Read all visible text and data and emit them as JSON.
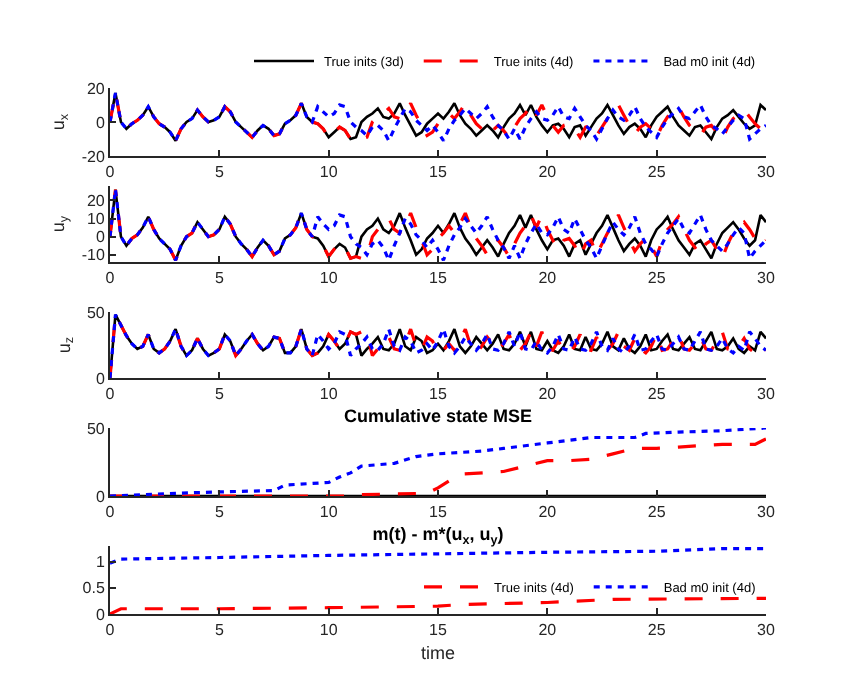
{
  "chart_data": [
    {
      "type": "line",
      "ylabel": "u$_{x}$",
      "xlim": [
        0,
        30
      ],
      "xticks": [
        0,
        5,
        10,
        15,
        20,
        25,
        30
      ],
      "ylim": [
        -20,
        20
      ],
      "yticks": [
        -20,
        0,
        20
      ],
      "legend": "top right",
      "grid": false,
      "marker": "none",
      "x": [
        0,
        0.25,
        0.5,
        0.75,
        1,
        1.25,
        1.5,
        1.75,
        2,
        2.25,
        2.5,
        2.75,
        3,
        3.25,
        3.5,
        3.75,
        4,
        4.25,
        4.5,
        4.75,
        5,
        5.25,
        5.5,
        5.75,
        6,
        6.25,
        6.5,
        6.75,
        7,
        7.25,
        7.5,
        7.75,
        8,
        8.25,
        8.5,
        8.75,
        9,
        9.25,
        9.5,
        9.75,
        10,
        10.25,
        10.5,
        10.75,
        11,
        11.25,
        11.5,
        11.75,
        12,
        12.25,
        12.5,
        12.75,
        13,
        13.25,
        13.5,
        13.75,
        14,
        14.25,
        14.5,
        14.75,
        15,
        15.25,
        15.5,
        15.75,
        16,
        16.25,
        16.5,
        16.75,
        17,
        17.25,
        17.5,
        17.75,
        18,
        18.25,
        18.5,
        18.75,
        19,
        19.25,
        19.5,
        19.75,
        20,
        20.25,
        20.5,
        20.75,
        21,
        21.25,
        21.5,
        21.75,
        22,
        22.25,
        22.5,
        22.75,
        23,
        23.25,
        23.5,
        23.75,
        24,
        24.25,
        24.5,
        24.75,
        25,
        25.25,
        25.5,
        25.75,
        26,
        26.25,
        26.5,
        26.75,
        27,
        27.25,
        27.5,
        27.75,
        28,
        28.25,
        28.5,
        28.75,
        29,
        29.25,
        29.5,
        29.75,
        30
      ],
      "series": [
        {
          "name": "True inits (3d)",
          "color": "#000000",
          "line_style": "solid",
          "values": [
            0,
            17,
            0,
            -4,
            -1,
            1,
            4,
            9,
            3,
            -1,
            -3,
            -6,
            -11,
            -4,
            0,
            2,
            7,
            3,
            0,
            1,
            3,
            9,
            6,
            0,
            -3,
            -6,
            -9,
            -5,
            -2,
            -4,
            -8,
            -7,
            -1,
            1,
            4,
            11,
            3,
            0,
            -1,
            -4,
            -9,
            -6,
            -3,
            -5,
            -10,
            -9,
            0,
            3,
            5,
            8,
            3,
            2,
            5,
            11,
            4,
            -2,
            -8,
            -6,
            -1,
            2,
            5,
            2,
            6,
            11,
            4,
            -1,
            -4,
            -8,
            -5,
            -2,
            -5,
            -9,
            -3,
            2,
            5,
            10,
            4,
            10,
            3,
            -2,
            -6,
            -2,
            -1,
            -4,
            -9,
            -3,
            -2,
            -8,
            -3,
            2,
            5,
            10,
            4,
            -2,
            -7,
            -3,
            -1,
            -4,
            -9,
            -2,
            3,
            6,
            9,
            3,
            -2,
            -5,
            -8,
            -3,
            -2,
            -6,
            -10,
            -3,
            2,
            4,
            7,
            3,
            -1,
            -4,
            -2,
            10,
            7
          ]
        },
        {
          "name": "True inits (4d)",
          "color": "#ff0000",
          "line_style": "dashed",
          "values": [
            0,
            17,
            0,
            -4,
            -1,
            1,
            4,
            9,
            3,
            -1,
            -3,
            -6,
            -11,
            -4,
            0,
            2,
            7,
            3,
            0,
            1,
            3,
            9,
            6,
            0,
            -3,
            -6,
            -9,
            -5,
            -2,
            -4,
            -8,
            -7,
            -1,
            1,
            4,
            11,
            3,
            0,
            -1,
            -4,
            -9,
            -6,
            -3,
            -5,
            -10,
            -9,
            -10,
            -9,
            0,
            3,
            5,
            8,
            3,
            2,
            5,
            11,
            4,
            -2,
            -8,
            -6,
            -1,
            2,
            5,
            2,
            6,
            11,
            4,
            -1,
            -4,
            -8,
            -5,
            -2,
            -5,
            -9,
            -3,
            2,
            5,
            10,
            4,
            10,
            3,
            -2,
            -6,
            -2,
            -1,
            -4,
            -9,
            -3,
            -2,
            -8,
            -3,
            2,
            5,
            10,
            4,
            -2,
            -7,
            -3,
            -1,
            -4,
            -9,
            -2,
            3,
            6,
            9,
            3,
            -2,
            -5,
            -8,
            -3,
            -2,
            -6,
            -10,
            -3,
            2,
            4,
            7,
            3,
            -1,
            -4,
            -2
          ]
        },
        {
          "name": "Bad m0 init (4d)",
          "color": "#0000ff",
          "line_style": "dotted",
          "values": [
            0,
            17,
            0,
            -4,
            -1,
            1,
            4,
            9,
            3,
            -1,
            -3,
            -6,
            -11,
            -4,
            0,
            2,
            7,
            3,
            0,
            1,
            3,
            9,
            6,
            0,
            -3,
            -6,
            -9,
            -5,
            -2,
            -4,
            -8,
            -7,
            -1,
            1,
            4,
            11,
            3,
            0,
            9,
            6,
            3,
            5,
            10,
            9,
            0,
            -3,
            -5,
            -8,
            -3,
            -2,
            -5,
            -11,
            -4,
            2,
            8,
            6,
            1,
            -2,
            -5,
            -2,
            -6,
            -11,
            -4,
            1,
            4,
            8,
            5,
            2,
            5,
            9,
            3,
            -2,
            -5,
            -10,
            -4,
            -10,
            -3,
            2,
            6,
            2,
            1,
            4,
            9,
            3,
            2,
            8,
            3,
            -2,
            -5,
            -10,
            -4,
            2,
            7,
            3,
            1,
            4,
            9,
            2,
            -3,
            -6,
            -9,
            -3,
            2,
            5,
            8,
            3,
            2,
            6,
            10,
            3,
            -2,
            -4,
            -7,
            -3,
            1,
            4,
            2,
            -10,
            -7,
            -4,
            -2
          ]
        }
      ]
    },
    {
      "type": "line",
      "ylabel": "u$_{y}$",
      "xlim": [
        0,
        30
      ],
      "xticks": [
        0,
        5,
        10,
        15,
        20,
        25,
        30
      ],
      "ylim": [
        -14,
        28
      ],
      "yticks": [
        -10,
        0,
        10,
        20
      ],
      "grid": false,
      "marker": "none",
      "x": [
        0,
        0.25,
        0.5,
        0.75,
        1,
        1.25,
        1.5,
        1.75,
        2,
        2.25,
        2.5,
        2.75,
        3,
        3.25,
        3.5,
        3.75,
        4,
        4.25,
        4.5,
        4.75,
        5,
        5.25,
        5.5,
        5.75,
        6,
        6.25,
        6.5,
        6.75,
        7,
        7.25,
        7.5,
        7.75,
        8,
        8.25,
        8.5,
        8.75,
        9,
        9.25,
        9.5,
        9.75,
        10,
        10.25,
        10.5,
        10.75,
        11,
        11.25,
        11.5,
        11.75,
        12,
        12.25,
        12.5,
        12.75,
        13,
        13.25,
        13.5,
        13.75,
        14,
        14.25,
        14.5,
        14.75,
        15,
        15.25,
        15.5,
        15.75,
        16,
        16.25,
        16.5,
        16.75,
        17,
        17.25,
        17.5,
        17.75,
        18,
        18.25,
        18.5,
        18.75,
        19,
        19.25,
        19.5,
        19.75,
        20,
        20.25,
        20.5,
        20.75,
        21,
        21.25,
        21.5,
        21.75,
        22,
        22.25,
        22.5,
        22.75,
        23,
        23.25,
        23.5,
        23.75,
        24,
        24.25,
        24.5,
        24.75,
        25,
        25.25,
        25.5,
        25.75,
        26,
        26.25,
        26.5,
        26.75,
        27,
        27.25,
        27.5,
        27.75,
        28,
        28.25,
        28.5,
        28.75,
        29,
        29.25,
        29.5,
        29.75,
        30
      ],
      "series": [
        {
          "color": "#000000",
          "line_style": "solid",
          "values": [
            0,
            26,
            0,
            -5,
            -1,
            1,
            5,
            11,
            4,
            -1,
            -4,
            -7,
            -13,
            -5,
            0,
            2,
            8,
            4,
            0,
            1,
            4,
            11,
            7,
            0,
            -4,
            -7,
            -11,
            -6,
            -2,
            -5,
            -10,
            -8,
            -1,
            1,
            5,
            13,
            4,
            0,
            -1,
            -5,
            -11,
            -7,
            -4,
            -6,
            -12,
            -11,
            0,
            4,
            6,
            10,
            4,
            2,
            6,
            13,
            5,
            -2,
            -10,
            -7,
            -1,
            2,
            6,
            2,
            7,
            13,
            5,
            -1,
            -5,
            -10,
            -6,
            -2,
            -6,
            -11,
            -4,
            2,
            6,
            12,
            5,
            12,
            4,
            -2,
            -7,
            -2,
            -1,
            -5,
            -11,
            -4,
            -2,
            -10,
            -4,
            2,
            6,
            12,
            5,
            -2,
            -8,
            -4,
            -1,
            -5,
            -11,
            -2,
            4,
            7,
            11,
            4,
            -2,
            -6,
            -10,
            -4,
            -2,
            -7,
            -12,
            -4,
            2,
            5,
            8,
            4,
            -1,
            -5,
            -2,
            12,
            8
          ]
        },
        {
          "color": "#ff0000",
          "line_style": "dashed",
          "values": [
            0,
            26,
            0,
            -5,
            -1,
            1,
            5,
            11,
            4,
            -1,
            -4,
            -7,
            -13,
            -5,
            0,
            2,
            8,
            4,
            0,
            1,
            4,
            11,
            7,
            0,
            -4,
            -7,
            -11,
            -6,
            -2,
            -5,
            -10,
            -8,
            -1,
            1,
            5,
            13,
            4,
            0,
            -1,
            -5,
            -11,
            -7,
            -4,
            -6,
            -12,
            -11,
            -12,
            -11,
            0,
            4,
            6,
            10,
            4,
            2,
            6,
            13,
            5,
            -2,
            -10,
            -7,
            -1,
            2,
            6,
            2,
            7,
            13,
            5,
            -1,
            -5,
            -10,
            -6,
            -2,
            -6,
            -11,
            -4,
            2,
            6,
            12,
            5,
            12,
            4,
            -2,
            -7,
            -2,
            -1,
            -5,
            -11,
            -4,
            -2,
            -10,
            -4,
            2,
            6,
            12,
            5,
            -2,
            -8,
            -4,
            -1,
            -5,
            -11,
            -2,
            4,
            7,
            11,
            4,
            -2,
            -6,
            -10,
            -4,
            -2,
            -7,
            -12,
            -4,
            2,
            5,
            8,
            4,
            -1,
            -5,
            -2
          ]
        },
        {
          "color": "#0000ff",
          "line_style": "dotted",
          "values": [
            0,
            26,
            0,
            -5,
            -1,
            1,
            5,
            11,
            4,
            -1,
            -4,
            -7,
            -13,
            -5,
            0,
            2,
            8,
            4,
            0,
            1,
            4,
            11,
            7,
            0,
            -4,
            -7,
            -11,
            -6,
            -2,
            -5,
            -10,
            -8,
            -1,
            1,
            5,
            13,
            4,
            0,
            11,
            7,
            4,
            6,
            12,
            11,
            0,
            -4,
            -6,
            -10,
            -4,
            -2,
            -6,
            -13,
            -5,
            2,
            10,
            7,
            1,
            -2,
            -6,
            -2,
            -7,
            -13,
            -5,
            1,
            5,
            10,
            6,
            2,
            6,
            11,
            4,
            -2,
            -6,
            -12,
            -5,
            -12,
            -4,
            2,
            7,
            2,
            1,
            5,
            11,
            4,
            2,
            10,
            4,
            -2,
            -6,
            -12,
            -5,
            2,
            8,
            4,
            1,
            5,
            11,
            2,
            -4,
            -7,
            -11,
            -4,
            2,
            6,
            10,
            4,
            2,
            7,
            12,
            4,
            -2,
            -5,
            -8,
            -4,
            1,
            5,
            2,
            -12,
            -8,
            -5,
            -2
          ]
        }
      ]
    },
    {
      "type": "line",
      "ylabel": "u$_{z}$",
      "xlim": [
        0,
        30
      ],
      "xticks": [
        0,
        5,
        10,
        15,
        20,
        25,
        30
      ],
      "ylim": [
        0,
        50
      ],
      "yticks": [
        0,
        50
      ],
      "grid": false,
      "marker": "none",
      "x": [
        0,
        0.25,
        0.5,
        0.75,
        1,
        1.25,
        1.5,
        1.75,
        2,
        2.25,
        2.5,
        2.75,
        3,
        3.25,
        3.5,
        3.75,
        4,
        4.25,
        4.5,
        4.75,
        5,
        5.25,
        5.5,
        5.75,
        6,
        6.25,
        6.5,
        6.75,
        7,
        7.25,
        7.5,
        7.75,
        8,
        8.25,
        8.5,
        8.75,
        9,
        9.25,
        9.5,
        9.75,
        10,
        10.25,
        10.5,
        10.75,
        11,
        11.25,
        11.5,
        11.75,
        12,
        12.25,
        12.5,
        12.75,
        13,
        13.25,
        13.5,
        13.75,
        14,
        14.25,
        14.5,
        14.75,
        15,
        15.25,
        15.5,
        15.75,
        16,
        16.25,
        16.5,
        16.75,
        17,
        17.25,
        17.5,
        17.75,
        18,
        18.25,
        18.5,
        18.75,
        19,
        19.25,
        19.5,
        19.75,
        20,
        20.25,
        20.5,
        20.75,
        21,
        21.25,
        21.5,
        21.75,
        22,
        22.25,
        22.5,
        22.75,
        23,
        23.25,
        23.5,
        23.75,
        24,
        24.25,
        24.5,
        24.75,
        25,
        25.25,
        25.5,
        25.75,
        26,
        26.25,
        26.5,
        26.75,
        27,
        27.25,
        27.5,
        27.75,
        28,
        28.25,
        28.5,
        28.75,
        29,
        29.25,
        29.5,
        29.75,
        30
      ],
      "series": [
        {
          "color": "#000000",
          "line_style": "solid",
          "values": [
            0,
            48,
            40,
            32,
            26,
            22,
            24,
            33,
            22,
            19,
            22,
            28,
            37,
            24,
            17,
            21,
            30,
            22,
            17,
            19,
            22,
            33,
            28,
            17,
            22,
            28,
            33,
            26,
            21,
            24,
            31,
            30,
            19,
            19,
            24,
            37,
            22,
            17,
            19,
            24,
            33,
            28,
            22,
            26,
            35,
            33,
            17,
            22,
            26,
            31,
            22,
            21,
            26,
            37,
            24,
            21,
            31,
            28,
            19,
            21,
            26,
            21,
            28,
            37,
            24,
            19,
            24,
            31,
            26,
            21,
            26,
            33,
            22,
            21,
            26,
            35,
            24,
            35,
            22,
            21,
            28,
            21,
            19,
            24,
            33,
            22,
            21,
            31,
            22,
            21,
            26,
            35,
            24,
            21,
            30,
            22,
            19,
            24,
            33,
            21,
            22,
            28,
            33,
            22,
            21,
            26,
            31,
            22,
            21,
            28,
            35,
            22,
            21,
            24,
            30,
            22,
            19,
            24,
            21,
            35,
            30
          ]
        },
        {
          "color": "#ff0000",
          "line_style": "dashed",
          "values": [
            0,
            48,
            40,
            32,
            26,
            22,
            24,
            33,
            22,
            19,
            22,
            28,
            37,
            24,
            17,
            21,
            30,
            22,
            17,
            19,
            22,
            33,
            28,
            17,
            22,
            28,
            33,
            26,
            21,
            24,
            31,
            30,
            19,
            19,
            24,
            37,
            22,
            17,
            19,
            24,
            33,
            28,
            22,
            26,
            35,
            33,
            35,
            33,
            17,
            22,
            26,
            31,
            22,
            21,
            26,
            37,
            24,
            21,
            31,
            28,
            19,
            21,
            26,
            21,
            28,
            37,
            24,
            19,
            24,
            31,
            26,
            21,
            26,
            33,
            22,
            21,
            26,
            35,
            24,
            35,
            22,
            21,
            28,
            21,
            19,
            24,
            33,
            22,
            21,
            31,
            22,
            21,
            26,
            35,
            24,
            21,
            30,
            22,
            19,
            24,
            33,
            21,
            22,
            28,
            33,
            22,
            21,
            26,
            31,
            22,
            21,
            28,
            35,
            22,
            21,
            24,
            30,
            22,
            19,
            24,
            21
          ]
        },
        {
          "color": "#0000ff",
          "line_style": "dotted",
          "values": [
            0,
            48,
            40,
            32,
            26,
            22,
            24,
            33,
            22,
            19,
            22,
            28,
            37,
            24,
            17,
            21,
            30,
            22,
            17,
            19,
            22,
            33,
            28,
            17,
            22,
            28,
            33,
            26,
            21,
            24,
            31,
            30,
            19,
            19,
            24,
            37,
            22,
            17,
            33,
            28,
            22,
            26,
            35,
            33,
            17,
            22,
            26,
            31,
            22,
            21,
            26,
            37,
            24,
            21,
            31,
            28,
            19,
            21,
            26,
            21,
            28,
            37,
            24,
            19,
            24,
            31,
            26,
            21,
            26,
            33,
            22,
            21,
            26,
            35,
            24,
            35,
            22,
            21,
            28,
            21,
            19,
            24,
            33,
            22,
            21,
            31,
            22,
            21,
            26,
            35,
            24,
            21,
            30,
            22,
            19,
            24,
            33,
            21,
            22,
            28,
            33,
            22,
            21,
            26,
            31,
            22,
            21,
            28,
            35,
            22,
            21,
            24,
            30,
            22,
            19,
            24,
            21,
            35,
            30,
            24,
            21
          ]
        }
      ]
    },
    {
      "type": "line",
      "title": "Cumulative state MSE",
      "xlim": [
        0,
        30
      ],
      "xticks": [
        0,
        5,
        10,
        15,
        20,
        25,
        30
      ],
      "ylim": [
        0,
        50
      ],
      "yticks": [
        0,
        50
      ],
      "grid": false,
      "marker": "none",
      "series": [
        {
          "color": "#000000",
          "line_style": "solid",
          "x": [
            0,
            30
          ],
          "values": [
            0,
            0
          ]
        },
        {
          "color": "#ff0000",
          "line_style": "dashed",
          "x": [
            0,
            11,
            11.5,
            14.5,
            15,
            15.5,
            16,
            18,
            19,
            20,
            21,
            22,
            23,
            24,
            25,
            26,
            27,
            28,
            29,
            29.5,
            30
          ],
          "values": [
            0,
            0,
            1,
            2,
            6,
            11,
            16,
            18,
            22,
            26,
            26,
            27,
            31,
            35,
            35,
            36,
            37,
            38,
            38,
            38,
            42
          ]
        },
        {
          "color": "#0000ff",
          "line_style": "dotted",
          "x": [
            0,
            3,
            5,
            7.5,
            8,
            10,
            10.5,
            11,
            11.5,
            13,
            14,
            15,
            17,
            18,
            20,
            22,
            24,
            24.5,
            26,
            28,
            29,
            30
          ],
          "values": [
            0,
            2,
            3,
            4,
            8,
            10,
            14,
            17,
            22,
            24,
            29,
            31,
            33,
            35,
            39,
            43,
            43,
            46,
            47,
            48,
            49,
            50
          ]
        }
      ]
    },
    {
      "type": "line",
      "title": "m(t) - m*(u$_{x}$, u$_{y}$)",
      "xlabel": "time",
      "xlim": [
        0,
        30
      ],
      "xticks": [
        0,
        5,
        10,
        15,
        20,
        25,
        30
      ],
      "ylim": [
        0,
        1.3
      ],
      "yticks": [
        0,
        0.5,
        1
      ],
      "legend": "bottom right",
      "grid": false,
      "marker": "none",
      "series": [
        {
          "name": "True inits (4d)",
          "color": "#ff0000",
          "line_style": "dashed",
          "x": [
            0,
            0.5,
            5,
            10,
            15,
            16,
            20,
            23,
            30
          ],
          "values": [
            0,
            0.1,
            0.1,
            0.12,
            0.15,
            0.18,
            0.22,
            0.28,
            0.3
          ]
        },
        {
          "name": "Bad m0 init (4d)",
          "color": "#0000ff",
          "line_style": "dotted",
          "x": [
            0,
            0.5,
            5,
            10,
            15,
            20,
            25,
            28,
            30
          ],
          "values": [
            0.97,
            1.05,
            1.08,
            1.12,
            1.15,
            1.18,
            1.2,
            1.25,
            1.25
          ]
        }
      ]
    }
  ]
}
